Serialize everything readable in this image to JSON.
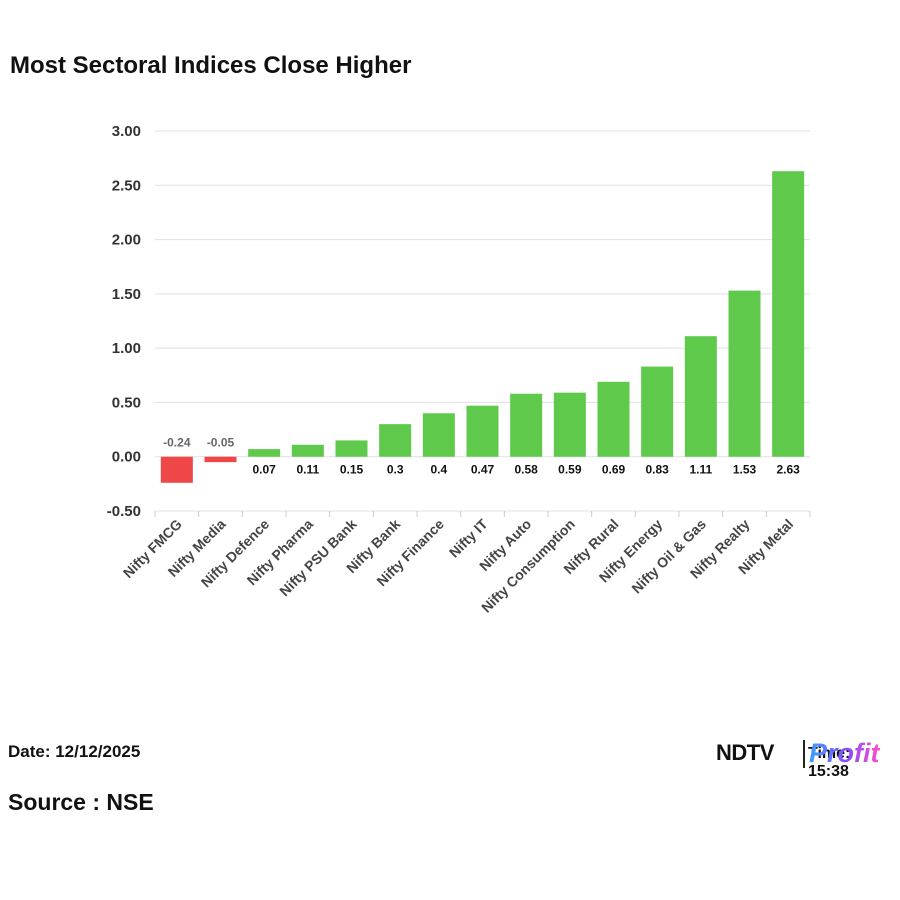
{
  "title": "Most Sectoral Indices Close Higher",
  "date_text": "Date: 12/12/2025",
  "source_text": "Source : NSE",
  "logo": {
    "ndtv": "NDTV",
    "time": "Time: 15:38",
    "profit": "Profit"
  },
  "colors": {
    "positive": "#5ec94a",
    "negative": "#ef4747",
    "grid": "#e0e0e0"
  },
  "chart_data": {
    "type": "bar",
    "title": "Most Sectoral Indices Close Higher",
    "xlabel": "",
    "ylabel": "",
    "ylim": [
      -0.5,
      3.0
    ],
    "yticks": [
      "3.00",
      "2.50",
      "2.00",
      "1.50",
      "1.00",
      "0.50",
      "0.00",
      "-0.50"
    ],
    "grid": true,
    "categories": [
      "Nifty FMCG",
      "Nifty Media",
      "Nifty Defence",
      "Nifty Pharma",
      "Nifty PSU Bank",
      "Nifty Bank",
      "Nifty Finance",
      "Nifty IT",
      "Nifty Auto",
      "Nifty Consumption",
      "Nifty Rural",
      "Nifty Energy",
      "Nifty Oil & Gas",
      "Nifty Realty",
      "Nifty Metal"
    ],
    "values": [
      -0.24,
      -0.05,
      0.07,
      0.11,
      0.15,
      0.3,
      0.4,
      0.47,
      0.58,
      0.59,
      0.69,
      0.83,
      1.11,
      1.53,
      2.63
    ],
    "value_labels": [
      "-0.24",
      "-0.05",
      "0.07",
      "0.11",
      "0.15",
      "0.3",
      "0.4",
      "0.47",
      "0.58",
      "0.59",
      "0.69",
      "0.83",
      "1.11",
      "1.53",
      "2.63"
    ]
  }
}
